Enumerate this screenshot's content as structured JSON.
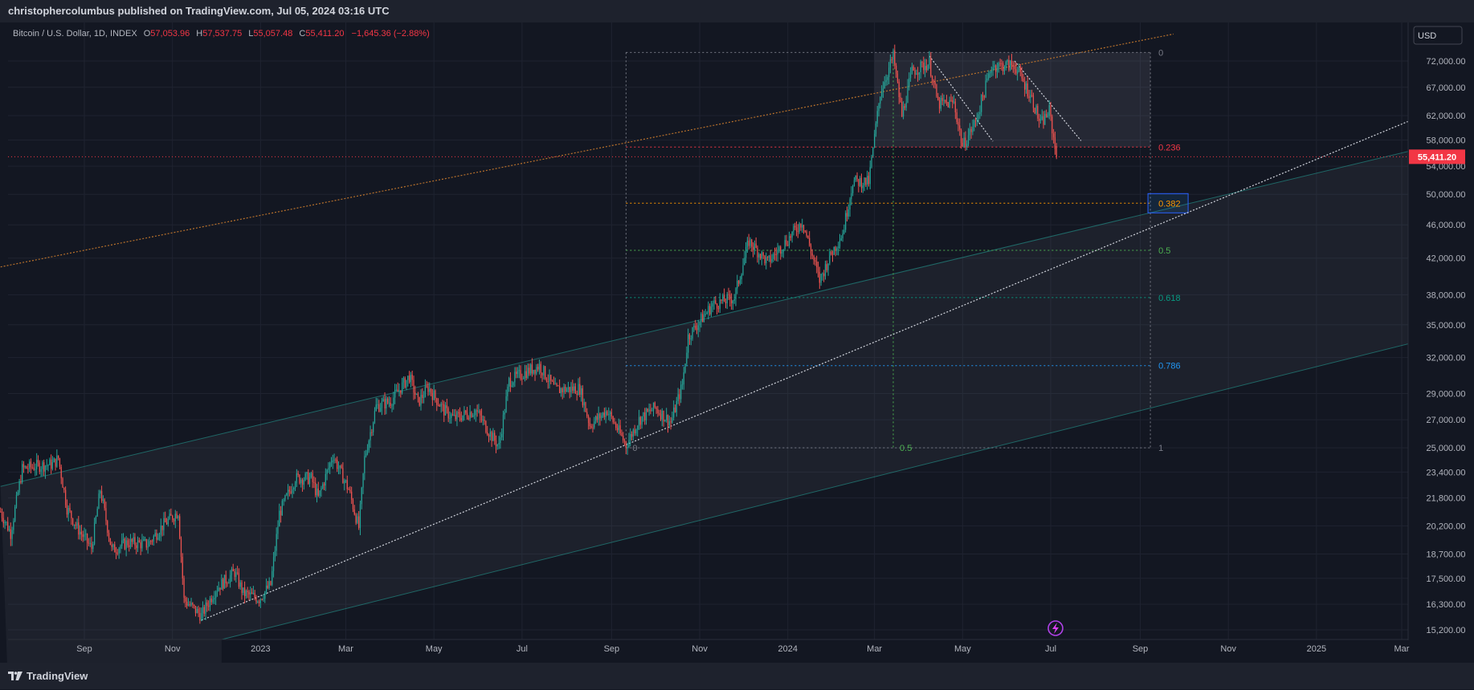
{
  "header": {
    "publish_line": "christophercolumbus published on TradingView.com, Jul 05, 2024 03:16 UTC"
  },
  "legend": {
    "symbol": "Bitcoin / U.S. Dollar, 1D, INDEX",
    "o_label": "O",
    "o_value": "57,053.96",
    "h_label": "H",
    "h_value": "57,537.75",
    "l_label": "L",
    "l_value": "55,057.48",
    "c_label": "C",
    "c_value": "55,411.20",
    "change": "−1,645.36 (−2.88%)"
  },
  "currency_button": "USD",
  "footer": {
    "brand": "TradingView"
  },
  "colors": {
    "background": "#131722",
    "up": "#26a69a",
    "down": "#ef5350",
    "axis_text": "#b2b5be",
    "price_label": "#f23645",
    "fib_0236": "#f23645",
    "fib_0382": "#ff9800",
    "fib_05": "#4caf50",
    "fib_0618": "#089981",
    "fib_0786": "#2196f3",
    "fib_0_1": "#787b86"
  },
  "chart_data": {
    "type": "candlestick",
    "symbol": "Bitcoin / U.S. Dollar, 1D, INDEX",
    "scale": "log",
    "x_range": [
      "2022-07-05",
      "2025-03-20"
    ],
    "y_range": [
      14800,
      78000
    ],
    "y_ticks": [
      {
        "v": 72000,
        "label": "72,000.00"
      },
      {
        "v": 67000,
        "label": "67,000.00"
      },
      {
        "v": 62000,
        "label": "62,000.00"
      },
      {
        "v": 58000,
        "label": "58,000.00"
      },
      {
        "v": 54000,
        "label": "54,000.00"
      },
      {
        "v": 50000,
        "label": "50,000.00"
      },
      {
        "v": 46000,
        "label": "46,000.00"
      },
      {
        "v": 42000,
        "label": "42,000.00"
      },
      {
        "v": 38000,
        "label": "38,000.00"
      },
      {
        "v": 35000,
        "label": "35,000.00"
      },
      {
        "v": 32000,
        "label": "32,000.00"
      },
      {
        "v": 29000,
        "label": "29,000.00"
      },
      {
        "v": 27000,
        "label": "27,000.00"
      },
      {
        "v": 25000,
        "label": "25,000.00"
      },
      {
        "v": 23400,
        "label": "23,400.00"
      },
      {
        "v": 21800,
        "label": "21,800.00"
      },
      {
        "v": 20200,
        "label": "20,200.00"
      },
      {
        "v": 18700,
        "label": "18,700.00"
      },
      {
        "v": 17500,
        "label": "17,500.00"
      },
      {
        "v": 16300,
        "label": "16,300.00"
      },
      {
        "v": 15200,
        "label": "15,200.00"
      }
    ],
    "x_ticks": [
      {
        "date": "2022-09-01",
        "label": "Sep"
      },
      {
        "date": "2022-11-01",
        "label": "Nov"
      },
      {
        "date": "2023-01-01",
        "label": "2023"
      },
      {
        "date": "2023-03-01",
        "label": "Mar"
      },
      {
        "date": "2023-05-01",
        "label": "May"
      },
      {
        "date": "2023-07-01",
        "label": "Jul"
      },
      {
        "date": "2023-09-01",
        "label": "Sep"
      },
      {
        "date": "2023-11-01",
        "label": "Nov"
      },
      {
        "date": "2024-01-01",
        "label": "2024"
      },
      {
        "date": "2024-03-01",
        "label": "Mar"
      },
      {
        "date": "2024-05-01",
        "label": "May"
      },
      {
        "date": "2024-07-01",
        "label": "Jul"
      },
      {
        "date": "2024-09-01",
        "label": "Sep"
      },
      {
        "date": "2024-11-01",
        "label": "Nov"
      },
      {
        "date": "2025-01-01",
        "label": "2025"
      },
      {
        "date": "2025-03-01",
        "label": "Mar"
      }
    ],
    "price_path": [
      [
        "2022-07-05",
        21000
      ],
      [
        "2022-07-12",
        19800
      ],
      [
        "2022-07-20",
        23600
      ],
      [
        "2022-07-30",
        23800
      ],
      [
        "2022-08-10",
        23900
      ],
      [
        "2022-08-14",
        24300
      ],
      [
        "2022-08-20",
        21200
      ],
      [
        "2022-08-27",
        20100
      ],
      [
        "2022-09-06",
        19000
      ],
      [
        "2022-09-12",
        22300
      ],
      [
        "2022-09-20",
        18900
      ],
      [
        "2022-10-01",
        19300
      ],
      [
        "2022-10-15",
        19200
      ],
      [
        "2022-10-25",
        20200
      ],
      [
        "2022-11-05",
        21000
      ],
      [
        "2022-11-09",
        16500
      ],
      [
        "2022-11-21",
        15800
      ],
      [
        "2022-12-01",
        17000
      ],
      [
        "2022-12-14",
        17800
      ],
      [
        "2022-12-20",
        16800
      ],
      [
        "2022-12-31",
        16550
      ],
      [
        "2023-01-08",
        17200
      ],
      [
        "2023-01-14",
        20900
      ],
      [
        "2023-01-25",
        23000
      ],
      [
        "2023-02-05",
        23000
      ],
      [
        "2023-02-10",
        21800
      ],
      [
        "2023-02-20",
        24500
      ],
      [
        "2023-03-03",
        22300
      ],
      [
        "2023-03-10",
        20100
      ],
      [
        "2023-03-14",
        24300
      ],
      [
        "2023-03-22",
        28000
      ],
      [
        "2023-04-01",
        28400
      ],
      [
        "2023-04-14",
        30400
      ],
      [
        "2023-04-20",
        28300
      ],
      [
        "2023-04-27",
        29500
      ],
      [
        "2023-05-08",
        27700
      ],
      [
        "2023-05-15",
        27100
      ],
      [
        "2023-05-30",
        27700
      ],
      [
        "2023-06-10",
        25800
      ],
      [
        "2023-06-15",
        25100
      ],
      [
        "2023-06-22",
        30000
      ],
      [
        "2023-07-01",
        30600
      ],
      [
        "2023-07-13",
        31300
      ],
      [
        "2023-07-24",
        29300
      ],
      [
        "2023-08-10",
        29400
      ],
      [
        "2023-08-17",
        26600
      ],
      [
        "2023-08-29",
        27700
      ],
      [
        "2023-09-11",
        25200
      ],
      [
        "2023-09-20",
        27000
      ],
      [
        "2023-10-01",
        27900
      ],
      [
        "2023-10-12",
        26800
      ],
      [
        "2023-10-20",
        29700
      ],
      [
        "2023-10-24",
        33900
      ],
      [
        "2023-11-10",
        37000
      ],
      [
        "2023-11-25",
        37700
      ],
      [
        "2023-12-05",
        44000
      ],
      [
        "2023-12-18",
        41500
      ],
      [
        "2024-01-01",
        44200
      ],
      [
        "2024-01-11",
        46500
      ],
      [
        "2024-01-23",
        39500
      ],
      [
        "2024-01-31",
        42500
      ],
      [
        "2024-02-08",
        45000
      ],
      [
        "2024-02-15",
        51800
      ],
      [
        "2024-02-26",
        51700
      ],
      [
        "2024-03-05",
        66000
      ],
      [
        "2024-03-14",
        73000
      ],
      [
        "2024-03-20",
        62000
      ],
      [
        "2024-03-27",
        70000
      ],
      [
        "2024-04-08",
        71600
      ],
      [
        "2024-04-14",
        64000
      ],
      [
        "2024-04-25",
        64200
      ],
      [
        "2024-05-01",
        57000
      ],
      [
        "2024-05-10",
        61000
      ],
      [
        "2024-05-21",
        71000
      ],
      [
        "2024-06-06",
        71200
      ],
      [
        "2024-06-12",
        68000
      ],
      [
        "2024-06-18",
        65000
      ],
      [
        "2024-06-24",
        60500
      ],
      [
        "2024-06-30",
        62800
      ],
      [
        "2024-07-05",
        55400
      ]
    ],
    "last": {
      "date": "2024-07-05",
      "open": 57053.96,
      "high": 57537.75,
      "low": 55057.48,
      "close": 55411.2
    },
    "current_price_label": "55,411.20",
    "fibonacci": {
      "start": {
        "date": "2023-09-11",
        "price": 25000
      },
      "end": {
        "date": "2024-03-14",
        "price": 73700
      },
      "extends_to": "2024-09-08",
      "levels": [
        {
          "ratio": 0,
          "label": "0",
          "price": 73700,
          "color": "#787b86"
        },
        {
          "ratio": 0.236,
          "label": "0.236",
          "price": 56900,
          "color": "#f23645"
        },
        {
          "ratio": 0.382,
          "label": "0.382",
          "price": 48800,
          "color": "#ff9800",
          "highlighted": true
        },
        {
          "ratio": 0.5,
          "label": "0.5",
          "price": 42900,
          "color": "#4caf50"
        },
        {
          "ratio": 0.618,
          "label": "0.618",
          "price": 37700,
          "color": "#089981"
        },
        {
          "ratio": 0.786,
          "label": "0.786",
          "price": 31300,
          "color": "#2196f3"
        },
        {
          "ratio": 1,
          "label": "1",
          "price": 25000,
          "color": "#787b86"
        }
      ],
      "bottom_labels": [
        "0",
        "0.5"
      ]
    },
    "trendlines": [
      {
        "name": "orange-upper-line",
        "color": "#b8712c",
        "from": [
          "2022-07-05",
          41000
        ],
        "to": [
          "2024-09-24",
          77500
        ],
        "dashed": true
      },
      {
        "name": "white-support-line",
        "color": "#d1d4dc",
        "from": [
          "2022-11-21",
          15600
        ],
        "to": [
          "2025-03-20",
          62500
        ],
        "dashed": true
      },
      {
        "name": "white-downtrend-1",
        "color": "#d1d4dc",
        "from": [
          "2024-04-08",
          73000
        ],
        "to": [
          "2024-05-22",
          57800
        ],
        "dashed": true
      },
      {
        "name": "white-downtrend-2",
        "color": "#d1d4dc",
        "from": [
          "2024-06-06",
          72000
        ],
        "to": [
          "2024-07-22",
          57900
        ],
        "dashed": true
      }
    ],
    "channel": {
      "upper": {
        "from": [
          "2022-07-05",
          22500
        ],
        "to": [
          "2025-03-20",
          57000
        ]
      },
      "lower": {
        "from": [
          "2022-12-05",
          14800
        ],
        "to": [
          "2025-03-20",
          33700
        ]
      }
    }
  }
}
